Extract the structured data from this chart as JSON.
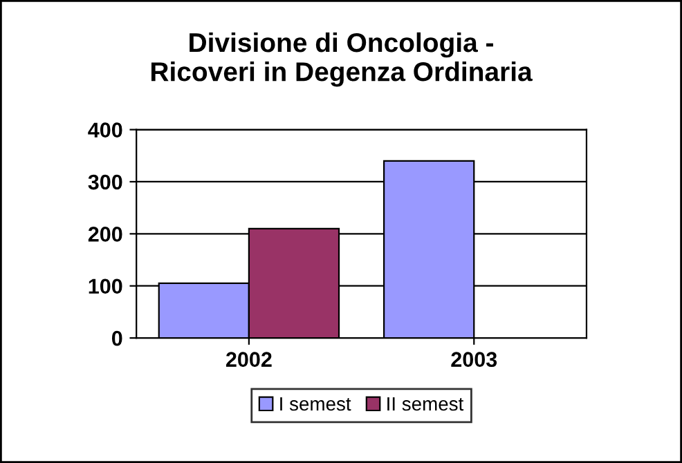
{
  "chart_data": {
    "type": "bar",
    "title": "Divisione di Oncologia -\nRicoveri in Degenza Ordinaria",
    "categories": [
      "2002",
      "2003"
    ],
    "series": [
      {
        "name": "I semest",
        "color": "#9999ff",
        "values": [
          105,
          340
        ]
      },
      {
        "name": "II semest",
        "color": "#993366",
        "values": [
          210,
          null
        ]
      }
    ],
    "ylim": [
      0,
      400
    ],
    "yticks": [
      0,
      100,
      200,
      300,
      400
    ],
    "grid": "y",
    "legend": "bottom"
  }
}
